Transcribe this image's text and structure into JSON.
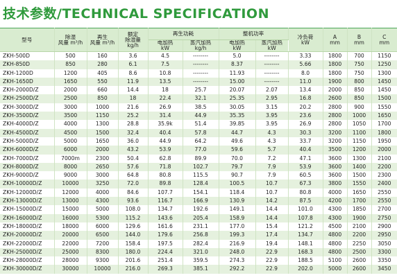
{
  "title": "技术参数/TECHNICAL SPECIFICATION",
  "header": {
    "model": "型号",
    "dehum_air": [
      "除湿",
      "风量 m³/h"
    ],
    "regen_air": [
      "再生",
      "风量 m³/h"
    ],
    "capacity": [
      "额定",
      "除湿量",
      "kg/h"
    ],
    "regen_power": "再生功耗",
    "regen_electric": [
      "电加热",
      "kW"
    ],
    "regen_steam": [
      "蒸汽加热",
      "kg/h"
    ],
    "total_power": "整机功率",
    "total_electric": [
      "电加热",
      "kW"
    ],
    "total_steam": [
      "蒸汽加热",
      "kW"
    ],
    "cooling": [
      "冷负荷",
      "kW"
    ],
    "a": [
      "A",
      "mm"
    ],
    "b": [
      "B",
      "mm"
    ],
    "c": [
      "C",
      "mm"
    ]
  },
  "rows": [
    [
      "ZKH-500D",
      "500",
      "160",
      "3.6",
      "4.5",
      "--------",
      "5.0",
      "--------",
      "3.33",
      "1800",
      "700",
      "1150"
    ],
    [
      "ZKH-850D",
      "850",
      "280",
      "6.1",
      "7.5",
      "--------",
      "8.37",
      "--------",
      "5.66",
      "1800",
      "750",
      "1250"
    ],
    [
      "ZKH-1200D",
      "1200",
      "405",
      "8.6",
      "10.8",
      "--------",
      "11.93",
      "--------",
      "8.0",
      "1800",
      "750",
      "1300"
    ],
    [
      "ZKH-1650D",
      "1650",
      "550",
      "11.9",
      "13.5",
      "--------",
      "15.00",
      "--------",
      "11.0",
      "1900",
      "800",
      "1450"
    ],
    [
      "ZKH-2000D/Z",
      "2000",
      "660",
      "14.4",
      "18",
      "25.7",
      "20.07",
      "2.07",
      "13.4",
      "2000",
      "850",
      "1450"
    ],
    [
      "ZKH-2500D/Z",
      "2500",
      "850",
      "18",
      "22.4",
      "32.1",
      "25.35",
      "2.95",
      "16.8",
      "2600",
      "850",
      "1500"
    ],
    [
      "ZKH-3000D/Z",
      "3000",
      "1000",
      "21.6",
      "26.9",
      "38.5",
      "30.05",
      "3.15",
      "20.2",
      "2800",
      "900",
      "1550"
    ],
    [
      "ZKH-3500D/Z",
      "3500",
      "1150",
      "25.2",
      "31.4",
      "44.9",
      "35.35",
      "3.95",
      "23.6",
      "2800",
      "1000",
      "1650"
    ],
    [
      "ZKH-4000D/Z",
      "4000",
      "1300",
      "28.8",
      "35.9k",
      "51.4",
      "39.85",
      "3.95",
      "26.9",
      "2800",
      "1050",
      "1700"
    ],
    [
      "ZKH-4500D/Z",
      "4500",
      "1500",
      "32.4",
      "40.4",
      "57.8",
      "44.7",
      "4.3",
      "30.3",
      "3200",
      "1100",
      "1800"
    ],
    [
      "ZKH-5000D/Z",
      "5000",
      "1650",
      "36.0",
      "44.9",
      "64.2",
      "49.6",
      "4.3",
      "33.7",
      "3200",
      "1150",
      "1950"
    ],
    [
      "ZKH-6000D/Z",
      "6000",
      "2000",
      "43.2",
      "53.9",
      "77.0",
      "59.6",
      "5.7",
      "40.4",
      "3500",
      "1200",
      "2000"
    ],
    [
      "ZKH-7000D/Z",
      "7000m",
      "2300",
      "50.4",
      "62.8",
      "89.9",
      "70.0",
      "7.2",
      "47.1",
      "3600",
      "1300",
      "2100"
    ],
    [
      "ZKH-8000D/Z",
      "8000",
      "2650",
      "57.6",
      "71.8",
      "102.7",
      "79.7",
      "7.9",
      "53.9",
      "3600",
      "1400",
      "2200"
    ],
    [
      "ZKH-9000D/Z",
      "9000",
      "3000",
      "64.8",
      "80.8",
      "115.5",
      "90.7",
      "7.9",
      "60.5",
      "3600",
      "1500",
      "2300"
    ],
    [
      "ZKH-10000D/Z",
      "10000",
      "3250",
      "72.0",
      "89.8",
      "128.4",
      "100.5",
      "10.7",
      "67.3",
      "3800",
      "1550",
      "2400"
    ],
    [
      "ZKH-12000D/Z",
      "12000",
      "4000",
      "84.6",
      "107.7",
      "154.1",
      "118.4",
      "10.7",
      "80.8",
      "4000",
      "1650",
      "2550"
    ],
    [
      "ZKH-13000D/Z",
      "13000",
      "4300",
      "93.6",
      "116.7",
      "166.9",
      "130.9",
      "14.2",
      "87.5",
      "4200",
      "1700",
      "2550"
    ],
    [
      "ZKH-15000D/Z",
      "15000",
      "5000",
      "108.0",
      "134.7",
      "192.6",
      "149.1",
      "14.4",
      "101.0",
      "4300",
      "1850",
      "2700"
    ],
    [
      "ZKH-16000D/Z",
      "16000",
      "5300",
      "115.2",
      "143.6",
      "205.4",
      "158.9",
      "14.4",
      "107.8",
      "4300",
      "1900",
      "2750"
    ],
    [
      "ZKH-18000D/Z",
      "18000",
      "6000",
      "129.6",
      "161.6",
      "231.1",
      "177.0",
      "15.4",
      "121.2",
      "4500",
      "2100",
      "2900"
    ],
    [
      "ZKH-20000D/Z",
      "20000",
      "6500",
      "144.0",
      "179.6",
      "256.8",
      "199.3",
      "17.4",
      "134.7",
      "4800",
      "2200",
      "2950"
    ],
    [
      "ZKH-22000D/Z",
      "22000",
      "7200",
      "158.4",
      "197.5",
      "282.4",
      "216.9",
      "19.4",
      "148.1",
      "4800",
      "2250",
      "3050"
    ],
    [
      "ZKH-25000D/Z",
      "25000",
      "8300",
      "180.0",
      "224.4",
      "321.0",
      "248.0",
      "22.9",
      "168.3",
      "4800",
      "2500",
      "3300"
    ],
    [
      "ZKH-28000D/Z",
      "28000",
      "9300",
      "201.6",
      "251.4",
      "359.5",
      "274.3",
      "22.9",
      "188.5",
      "5100",
      "2600",
      "3350"
    ],
    [
      "ZKH-30000D/Z",
      "30000",
      "10000",
      "216.0",
      "269.3",
      "385.1",
      "292.2",
      "22.9",
      "202.0",
      "5000",
      "2600",
      "3450"
    ]
  ]
}
